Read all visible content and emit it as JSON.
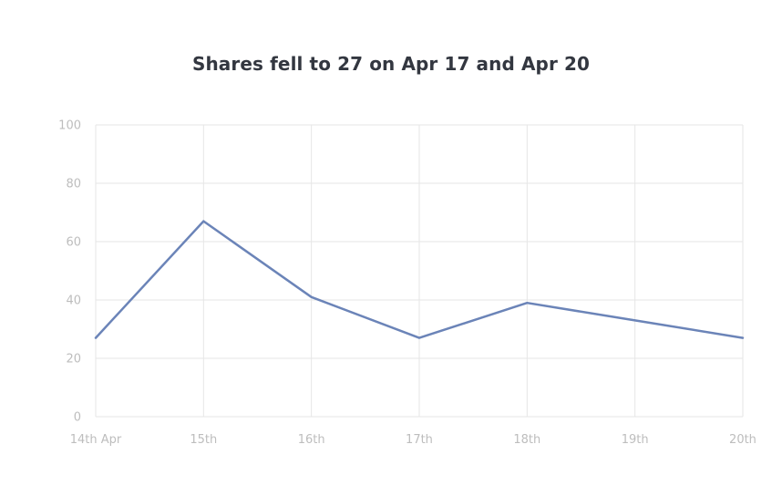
{
  "chart_data": {
    "type": "line",
    "title": "Shares fell to 27 on Apr 17 and Apr 20",
    "xlabel": "",
    "ylabel": "",
    "categories": [
      "14th Apr",
      "15th",
      "16th",
      "17th",
      "18th",
      "19th",
      "20th"
    ],
    "series": [
      {
        "values": [
          27,
          67,
          41,
          27,
          39,
          33,
          27
        ]
      }
    ],
    "ylim": [
      0,
      100
    ],
    "yticks": [
      0,
      20,
      40,
      60,
      80,
      100
    ],
    "grid": true,
    "legend": "none",
    "colors": {
      "line": "#6b84b8",
      "grid": "#e6e6e6",
      "tick_text": "#bdbdbd",
      "title": "#333740"
    }
  }
}
